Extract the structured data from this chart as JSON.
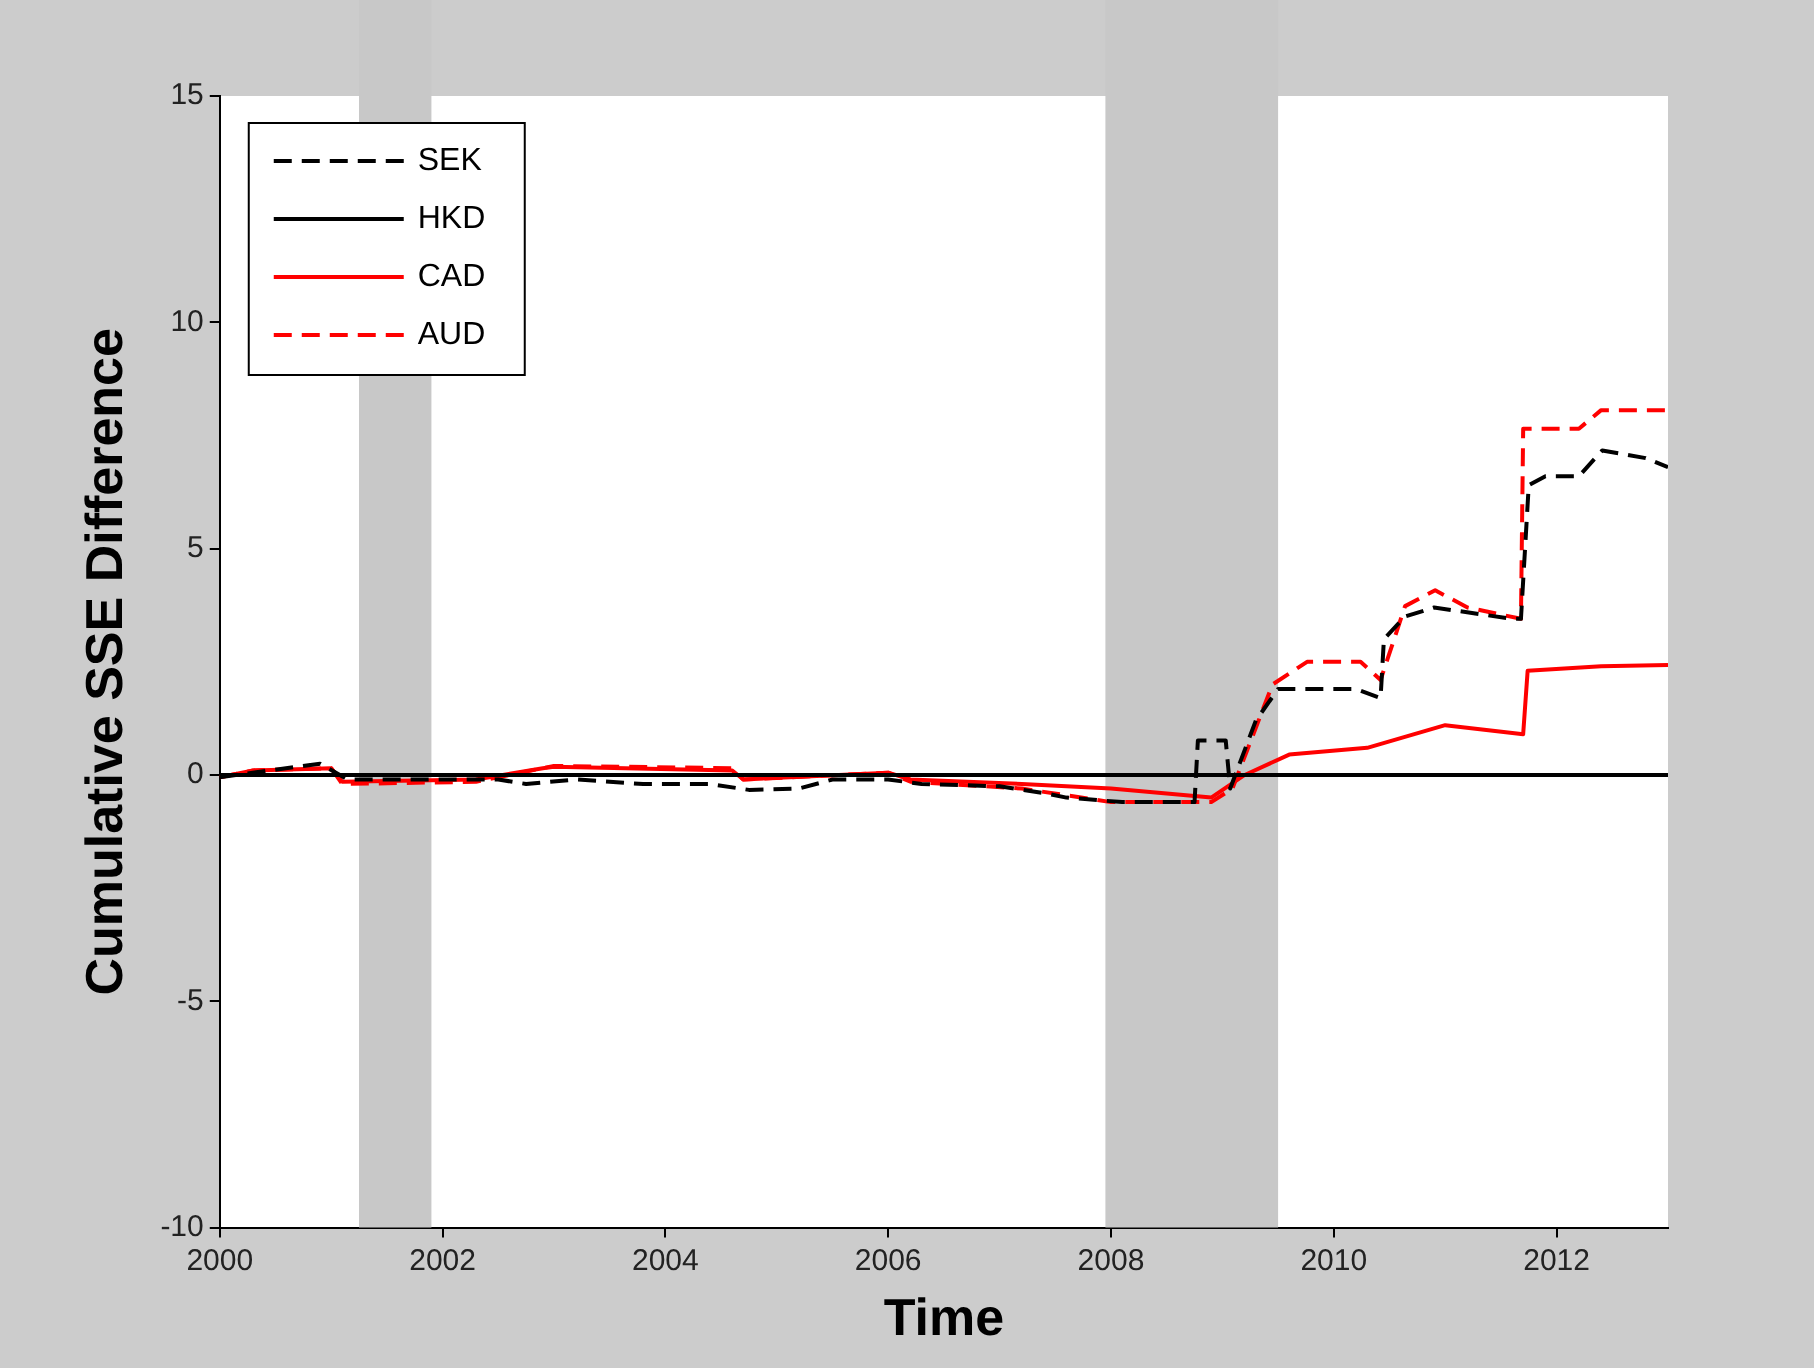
{
  "chart_data": {
    "type": "line",
    "xlabel": "Time",
    "ylabel": "Cumulative SSE Difference",
    "xlim": [
      2000,
      2013
    ],
    "xticks": [
      2000,
      2002,
      2004,
      2006,
      2008,
      2010,
      2012
    ],
    "ylim": [
      -10,
      15
    ],
    "yticks": [
      -10,
      -5,
      0,
      5,
      10,
      15
    ],
    "grid": false,
    "legend": "top left",
    "marker": "none",
    "bands": [
      {
        "axis": "x",
        "from": 2001.25,
        "to": 2001.9,
        "color": "#c8c8c8"
      },
      {
        "axis": "x",
        "from": 2007.95,
        "to": 2009.5,
        "color": "#c8c8c8"
      }
    ],
    "series": [
      {
        "name": "SEK",
        "color": "#000000",
        "line_style": "dashed",
        "x": [
          2000,
          2000.9,
          2001.15,
          2002.5,
          2002.75,
          2003.2,
          2003.8,
          2004.4,
          2004.75,
          2005.2,
          2005.5,
          2006.0,
          2006.3,
          2007.0,
          2007.4,
          2007.6,
          2008.1,
          2008.75,
          2008.78,
          2009.03,
          2009.07,
          2009.3,
          2009.5,
          2010.2,
          2010.42,
          2010.45,
          2010.64,
          2010.9,
          2011.6,
          2011.68,
          2011.75,
          2011.9,
          2012.2,
          2012.41,
          2012.8,
          2013
        ],
        "values": [
          -0.05,
          0.25,
          -0.1,
          -0.1,
          -0.2,
          -0.1,
          -0.2,
          -0.2,
          -0.33,
          -0.3,
          -0.1,
          -0.1,
          -0.2,
          -0.25,
          -0.4,
          -0.5,
          -0.6,
          -0.6,
          0.76,
          0.76,
          -0.3,
          1.2,
          1.9,
          1.9,
          1.7,
          3.0,
          3.5,
          3.7,
          3.45,
          3.45,
          6.4,
          6.6,
          6.6,
          7.17,
          7.0,
          6.8
        ]
      },
      {
        "name": "HKD",
        "color": "#000000",
        "line_style": "solid",
        "x": [
          2000,
          2013
        ],
        "values": [
          0,
          0
        ]
      },
      {
        "name": "CAD",
        "color": "#ff0000",
        "line_style": "solid",
        "x": [
          2000,
          2000.3,
          2001.0,
          2001.1,
          2002.3,
          2002.9,
          2003.0,
          2004.6,
          2004.7,
          2006.0,
          2006.2,
          2007.2,
          2008.0,
          2008.9,
          2009.2,
          2009.6,
          2010.3,
          2011.0,
          2011.7,
          2011.74,
          2012.4,
          2013
        ],
        "values": [
          -0.05,
          0.1,
          0.15,
          -0.15,
          -0.1,
          0.15,
          0.18,
          0.1,
          -0.1,
          0.05,
          -0.1,
          -0.2,
          -0.3,
          -0.5,
          0,
          0.45,
          0.6,
          1.1,
          0.9,
          2.3,
          2.4,
          2.43
        ]
      },
      {
        "name": "AUD",
        "color": "#ff0000",
        "line_style": "dashed",
        "x": [
          2000,
          2000.3,
          2001.0,
          2001.1,
          2002.3,
          2002.9,
          2003.0,
          2004.6,
          2004.7,
          2006.0,
          2006.2,
          2007.2,
          2008.0,
          2008.9,
          2009.09,
          2009.45,
          2009.76,
          2010.24,
          2010.42,
          2010.64,
          2010.91,
          2011.2,
          2011.68,
          2011.7,
          2012.2,
          2012.4,
          2013
        ],
        "values": [
          -0.05,
          0.1,
          0.15,
          -0.2,
          -0.15,
          0.15,
          0.2,
          0.15,
          -0.1,
          0.05,
          -0.15,
          -0.3,
          -0.6,
          -0.6,
          -0.3,
          2.0,
          2.5,
          2.5,
          2.1,
          3.73,
          4.08,
          3.7,
          3.45,
          7.65,
          7.65,
          8.06,
          8.06
        ]
      }
    ]
  }
}
